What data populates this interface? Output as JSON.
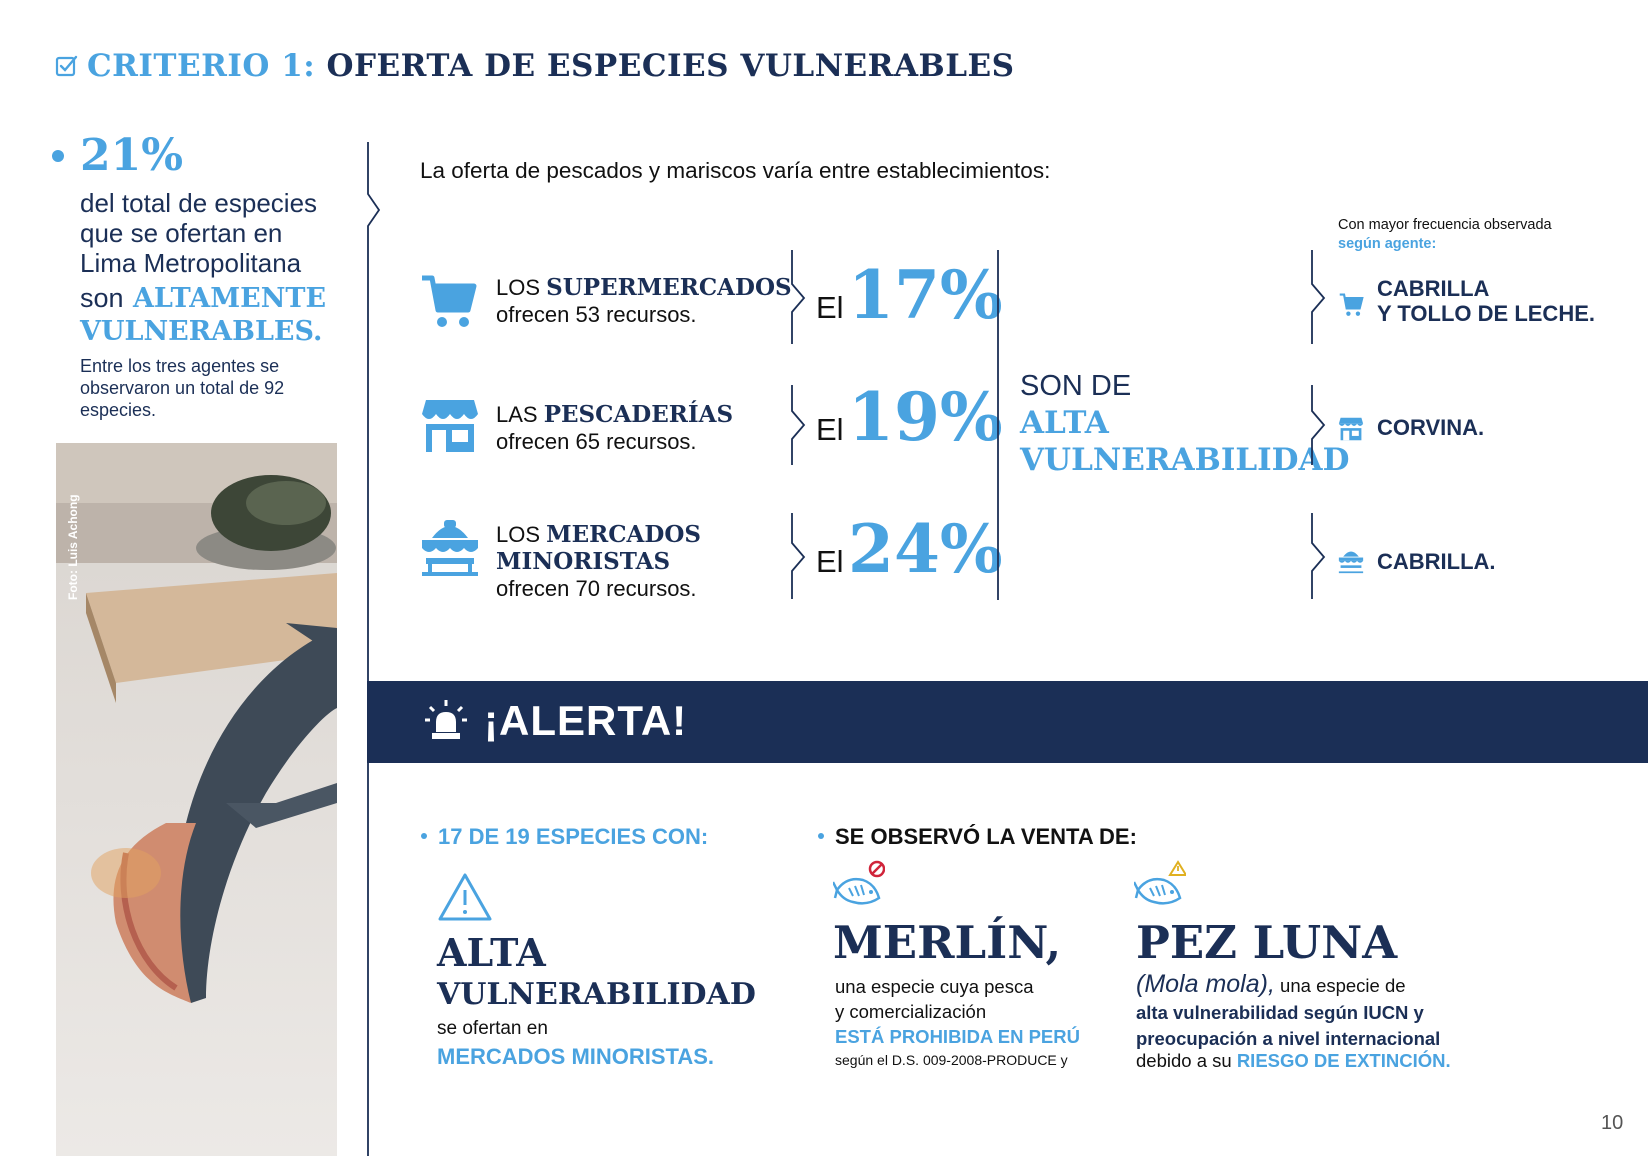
{
  "header": {
    "prefix": "CRITERIO 1:",
    "title": "OFERTA DE ESPECIES VULNERABLES"
  },
  "stat": {
    "percent": "21%",
    "line1": "del total de especies",
    "line2": "que se ofertan en",
    "line3": "Lima Metropolitana",
    "son": "son",
    "emph1": "ALTAMENTE",
    "emph2": "VULNERABLES.",
    "sub1": "Entre los tres agentes se",
    "sub2": "observaron un total de 92",
    "sub3": "especies."
  },
  "photo": {
    "credit": "Foto: Luis Achong"
  },
  "intro": "La oferta de pescados y mariscos varía entre establecimientos:",
  "agents": [
    {
      "icon": "shopping-cart-icon",
      "pre": "LOS ",
      "name": "SUPERMERCADOS",
      "name2": "",
      "offer": "ofrecen 53 recursos.",
      "el": "El",
      "percent": "17%",
      "freq_icon": "shopping-cart-icon",
      "freq1": "CABRILLA",
      "freq2": "Y TOLLO DE LECHE."
    },
    {
      "icon": "fish-store-icon",
      "pre": "LAS ",
      "name": "PESCADERÍAS",
      "name2": "",
      "offer": "ofrecen 65 recursos.",
      "el": "El",
      "percent": "19%",
      "freq_icon": "fish-store-icon",
      "freq1": "CORVINA.",
      "freq2": ""
    },
    {
      "icon": "market-stall-icon",
      "pre": "LOS ",
      "name": "MERCADOS",
      "name2": "MINORISTAS",
      "offer": "ofrecen 70 recursos.",
      "el": "El",
      "percent": "24%",
      "freq_icon": "market-stall-icon",
      "freq1": "CABRILLA.",
      "freq2": ""
    }
  ],
  "summary": {
    "son_de": "SON DE",
    "alta": "ALTA",
    "vulnerabilidad": "VULNERABILIDAD"
  },
  "freq_header": {
    "line1": "Con mayor frecuencia observada",
    "line2": "según agente:"
  },
  "alert": {
    "title": "¡ALERTA!"
  },
  "bullet1": {
    "label": "17 DE 19 ESPECIES CON:",
    "alta": "ALTA",
    "vulnerabilidad": "VULNERABILIDAD",
    "ofertan": "se ofertan en",
    "mercados": "MERCADOS MINORISTAS."
  },
  "bullet2": {
    "label": "SE OBSERVÓ LA VENTA DE:",
    "merlin": {
      "title": "MERLÍN,",
      "desc1": "una especie cuya pesca",
      "desc2": "y comercialización",
      "prohibited": "ESTÁ PROHIBIDA EN PERÚ",
      "ds": "según el D.S. 009-2008-PRODUCE y"
    },
    "luna": {
      "title": "PEZ LUNA",
      "sci": "(Mola mola),",
      "desc1": " una especie de",
      "desc2": "alta vulnerabilidad según IUCN y",
      "desc3": "preocupación a nivel internacional",
      "desc4": "debido a su ",
      "risk": "RIESGO DE EXTINCIÓN."
    }
  },
  "page_number": "10",
  "colors": {
    "navy": "#1b2f56",
    "accent": "#4aa3e0"
  }
}
